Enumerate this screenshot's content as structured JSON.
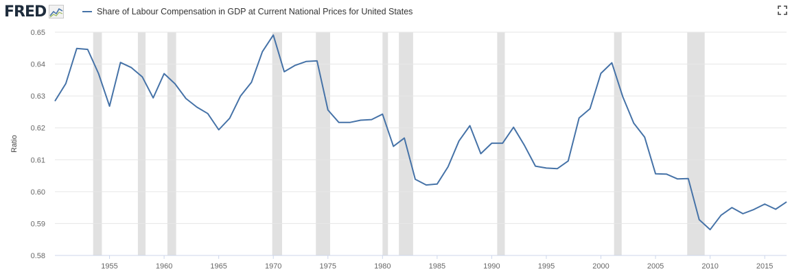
{
  "header": {
    "logo_text": "FRED",
    "logo_icon": "line-chart-icon",
    "fullscreen_icon": "fullscreen-icon"
  },
  "colors": {
    "series": "#4572a7",
    "recession": "#e1e1e1",
    "plot_background": "#ffffff",
    "grid": "#e6e6e6"
  },
  "chart_data": {
    "type": "line",
    "title": "",
    "xlabel": "",
    "ylabel": "Ratio",
    "xlim": [
      1950,
      2017
    ],
    "ylim": [
      0.58,
      0.65
    ],
    "grid": true,
    "legend_position": "top-left",
    "y_ticks": [
      "0.58",
      "0.59",
      "0.60",
      "0.61",
      "0.62",
      "0.63",
      "0.64",
      "0.65"
    ],
    "x_ticks": [
      "1955",
      "1960",
      "1965",
      "1970",
      "1975",
      "1980",
      "1985",
      "1990",
      "1995",
      "2000",
      "2005",
      "2010",
      "2015"
    ],
    "recessions": [
      [
        1953.5,
        1954.3
      ],
      [
        1957.6,
        1958.3
      ],
      [
        1960.3,
        1961.1
      ],
      [
        1969.9,
        1970.8
      ],
      [
        1973.9,
        1975.2
      ],
      [
        1980.0,
        1980.5
      ],
      [
        1981.5,
        1982.8
      ],
      [
        1990.5,
        1991.2
      ],
      [
        2001.2,
        2001.9
      ],
      [
        2007.9,
        2009.5
      ]
    ],
    "series": [
      {
        "name": "Share of Labour Compensation in GDP at Current National Prices for United States",
        "x": [
          1950,
          1951,
          1952,
          1953,
          1954,
          1955,
          1956,
          1957,
          1958,
          1959,
          1960,
          1961,
          1962,
          1963,
          1964,
          1965,
          1966,
          1967,
          1968,
          1969,
          1970,
          1971,
          1972,
          1973,
          1974,
          1975,
          1976,
          1977,
          1978,
          1979,
          1980,
          1981,
          1982,
          1983,
          1984,
          1985,
          1986,
          1987,
          1988,
          1989,
          1990,
          1991,
          1992,
          1993,
          1994,
          1995,
          1996,
          1997,
          1998,
          1999,
          2000,
          2001,
          2002,
          2003,
          2004,
          2005,
          2006,
          2007,
          2008,
          2009,
          2010,
          2011,
          2012,
          2013,
          2014,
          2015,
          2016,
          2017
        ],
        "values": [
          0.6284,
          0.6339,
          0.6449,
          0.6446,
          0.637,
          0.6268,
          0.6405,
          0.6389,
          0.636,
          0.6294,
          0.637,
          0.6338,
          0.6292,
          0.6265,
          0.6245,
          0.6194,
          0.623,
          0.63,
          0.6343,
          0.6439,
          0.6491,
          0.6376,
          0.6396,
          0.6408,
          0.641,
          0.6256,
          0.6217,
          0.6217,
          0.6224,
          0.6226,
          0.6243,
          0.6142,
          0.6168,
          0.6039,
          0.6021,
          0.6024,
          0.6078,
          0.6159,
          0.6207,
          0.6119,
          0.6152,
          0.6152,
          0.6202,
          0.6145,
          0.608,
          0.6074,
          0.6072,
          0.6096,
          0.6231,
          0.626,
          0.6371,
          0.6404,
          0.6298,
          0.6215,
          0.6171,
          0.6056,
          0.6055,
          0.604,
          0.6041,
          0.5912,
          0.5881,
          0.5926,
          0.595,
          0.5931,
          0.5944,
          0.5961,
          0.5945,
          0.5968
        ]
      }
    ]
  }
}
